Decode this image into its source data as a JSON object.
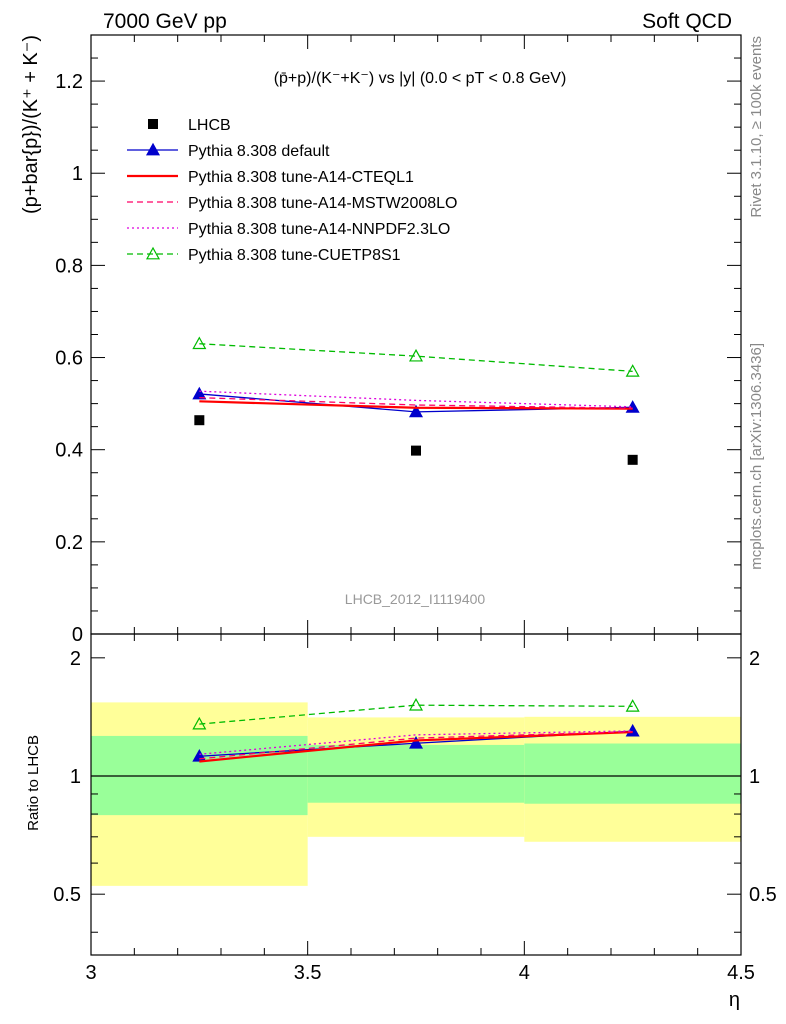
{
  "header": {
    "left": "7000 GeV pp",
    "right": "Soft QCD"
  },
  "side": {
    "rivet": "Rivet 3.1.10, ≥ 100k events",
    "mcplots": "mcplots.cern.ch [arXiv:1306.3436]"
  },
  "watermark": "LHCB_2012_I1119400",
  "chart_data": [
    {
      "type": "line",
      "title": "(p̄+p)/(K⁻+K⁻) vs |y| (0.0 < pT < 0.8 GeV)",
      "ylabel": "(p+bar{p})/(K⁺ + K⁻)",
      "xlabel": "",
      "xlim": [
        3,
        4.5
      ],
      "ylim": [
        0,
        1.3
      ],
      "y_ticks": [
        "0",
        "0.2",
        "0.4",
        "0.6",
        "0.8",
        "1",
        "1.2"
      ],
      "legend_position": "top-left",
      "x": [
        3.25,
        3.75,
        4.25
      ],
      "data": {
        "name": "LHCB",
        "values": [
          0.464,
          0.398,
          0.378
        ]
      },
      "series": [
        {
          "name": "Pythia 8.308 default",
          "color": "#0000cc",
          "style": "solid",
          "marker": "filled-triangle",
          "values": [
            0.521,
            0.482,
            0.492
          ]
        },
        {
          "name": "Pythia 8.308 tune-A14-CTEQL1",
          "color": "#ff0000",
          "style": "solid",
          "marker": "none",
          "values": [
            0.505,
            0.491,
            0.489
          ]
        },
        {
          "name": "Pythia 8.308 tune-A14-MSTW2008LO",
          "color": "#ff0066",
          "style": "dashed",
          "marker": "none",
          "values": [
            0.513,
            0.497,
            0.49
          ]
        },
        {
          "name": "Pythia 8.308 tune-A14-NNPDF2.3LO",
          "color": "#dd00dd",
          "style": "dotted",
          "marker": "none",
          "values": [
            0.527,
            0.507,
            0.493
          ]
        },
        {
          "name": "Pythia 8.308 tune-CUETP8S1",
          "color": "#00bb00",
          "style": "dashed",
          "marker": "open-triangle",
          "values": [
            0.63,
            0.603,
            0.57
          ]
        }
      ]
    },
    {
      "type": "line",
      "ylabel": "Ratio to LHCB",
      "xlabel": "η",
      "xlim": [
        3,
        4.5
      ],
      "ylim": [
        0.35,
        2.3
      ],
      "y_scale": "log",
      "x_ticks": [
        "3",
        "3.5",
        "4",
        "4.5"
      ],
      "y_ticks": [
        "0.5",
        "1",
        "2"
      ],
      "x": [
        3.25,
        3.75,
        4.25
      ],
      "bands": [
        {
          "x": [
            3.0,
            3.5
          ],
          "yellow": [
            0.525,
            1.54
          ],
          "green": [
            0.795,
            1.265
          ]
        },
        {
          "x": [
            3.5,
            4.0
          ],
          "yellow": [
            0.7,
            1.41
          ],
          "green": [
            0.855,
            1.2
          ]
        },
        {
          "x": [
            4.0,
            4.5
          ],
          "yellow": [
            0.68,
            1.415
          ],
          "green": [
            0.85,
            1.21
          ]
        }
      ],
      "series": [
        {
          "name": "Pythia 8.308 default",
          "values": [
            1.123,
            1.212,
            1.301
          ]
        },
        {
          "name": "Pythia 8.308 tune-A14-CTEQL1",
          "values": [
            1.089,
            1.232,
            1.294
          ]
        },
        {
          "name": "Pythia 8.308 tune-A14-MSTW2008LO",
          "values": [
            1.106,
            1.249,
            1.297
          ]
        },
        {
          "name": "Pythia 8.308 tune-A14-NNPDF2.3LO",
          "values": [
            1.136,
            1.273,
            1.303
          ]
        },
        {
          "name": "Pythia 8.308 tune-CUETP8S1",
          "values": [
            1.356,
            1.515,
            1.505
          ]
        }
      ]
    }
  ]
}
